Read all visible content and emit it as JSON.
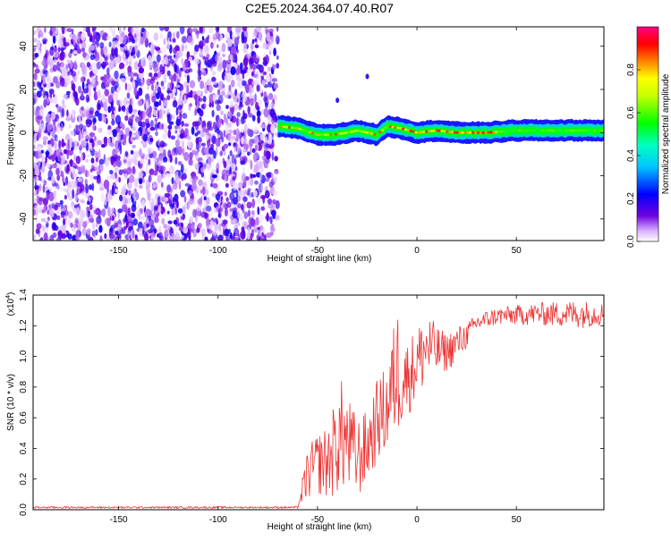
{
  "page_title": "C2E5.2024.364.07.40.R07",
  "chart_data": [
    {
      "type": "heatmap",
      "title": "C2E5.2024.364.07.40.R07",
      "xlabel": "Height of straight line (km)",
      "ylabel": "Frequency (Hz)",
      "xlim": [
        -193,
        94
      ],
      "ylim": [
        -50,
        49
      ],
      "x_ticks": [
        -150,
        -100,
        -50,
        0,
        50
      ],
      "y_ticks": [
        -40,
        -20,
        0,
        20,
        40
      ],
      "x_tick_labels": [
        "-150",
        "-100",
        "-50",
        "0",
        "50"
      ],
      "y_tick_labels": [
        "-40",
        "-20",
        "0",
        "20",
        "40"
      ],
      "colorbar": {
        "label": "Normalized spectral amplitude",
        "range": [
          0.0,
          1.0
        ],
        "ticks": [
          0.0,
          0.2,
          0.4,
          0.6,
          0.8
        ],
        "tick_labels": [
          "0.0",
          "0.2",
          "0.4",
          "0.6",
          "0.8"
        ],
        "colors": [
          "#ffffff",
          "#7000e0",
          "#0000ff",
          "#00ffff",
          "#00ff00",
          "#ffff00",
          "#ff8000",
          "#ff0000",
          "#ff0080"
        ]
      },
      "regions": [
        {
          "name": "noise",
          "x_range": [
            -193,
            -70
          ],
          "freq_range": [
            -50,
            49
          ],
          "amplitude": [
            0.0,
            0.25
          ]
        },
        {
          "name": "signal-line",
          "x_range": [
            -70,
            94
          ],
          "center_freq": 0,
          "amplitude": [
            0.3,
            0.95
          ]
        },
        {
          "name": "blip",
          "x": -40,
          "freq": 15
        },
        {
          "name": "blip",
          "x": -25,
          "freq": 26
        }
      ],
      "signal_ridge_points": [
        {
          "x": -70,
          "f": 3
        },
        {
          "x": -60,
          "f": 2
        },
        {
          "x": -50,
          "f": -1
        },
        {
          "x": -42,
          "f": -1
        },
        {
          "x": -35,
          "f": 0
        },
        {
          "x": -30,
          "f": 1
        },
        {
          "x": -20,
          "f": -1
        },
        {
          "x": -15,
          "f": 3
        },
        {
          "x": -8,
          "f": 2
        },
        {
          "x": 0,
          "f": 0
        },
        {
          "x": 10,
          "f": 1
        },
        {
          "x": 20,
          "f": 0
        },
        {
          "x": 35,
          "f": 0
        },
        {
          "x": 50,
          "f": 1
        },
        {
          "x": 70,
          "f": 1
        },
        {
          "x": 94,
          "f": 1
        }
      ]
    },
    {
      "type": "line",
      "xlabel": "Height of straight line (km)",
      "ylabel": "SNR (10 * v/v)",
      "y_scale_note": "(x10",
      "y_scale_exp": "4",
      "y_scale_suffix": ")",
      "xlim": [
        -193,
        94
      ],
      "ylim": [
        0,
        1.4
      ],
      "x_ticks": [
        -150,
        -100,
        -50,
        0,
        50
      ],
      "y_ticks": [
        0.0,
        0.2,
        0.4,
        0.6,
        0.8,
        1.0,
        1.2,
        1.4
      ],
      "x_tick_labels": [
        "-150",
        "-100",
        "-50",
        "0",
        "50"
      ],
      "y_tick_labels": [
        "0.0",
        "0.2",
        "0.4",
        "0.6",
        "0.8",
        "1.0",
        "1.2",
        "1.4"
      ],
      "series": [
        {
          "color": "#ee3333",
          "envelope": [
            {
              "x": -193,
              "low": 0.0,
              "high": 0.03
            },
            {
              "x": -60,
              "low": 0.0,
              "high": 0.03
            },
            {
              "x": -55,
              "low": 0.05,
              "high": 0.4
            },
            {
              "x": -50,
              "low": 0.1,
              "high": 0.5
            },
            {
              "x": -45,
              "low": 0.05,
              "high": 0.55
            },
            {
              "x": -38,
              "low": 0.1,
              "high": 0.85
            },
            {
              "x": -30,
              "low": 0.05,
              "high": 0.6
            },
            {
              "x": -25,
              "low": 0.15,
              "high": 0.65
            },
            {
              "x": -20,
              "low": 0.3,
              "high": 0.85
            },
            {
              "x": -15,
              "low": 0.35,
              "high": 0.95
            },
            {
              "x": -10,
              "low": 0.45,
              "high": 1.35
            },
            {
              "x": -5,
              "low": 0.6,
              "high": 1.1
            },
            {
              "x": 0,
              "low": 0.7,
              "high": 1.2
            },
            {
              "x": 5,
              "low": 0.8,
              "high": 1.3
            },
            {
              "x": 10,
              "low": 0.85,
              "high": 1.2
            },
            {
              "x": 15,
              "low": 0.9,
              "high": 1.15
            },
            {
              "x": 20,
              "low": 0.95,
              "high": 1.2
            },
            {
              "x": 25,
              "low": 1.05,
              "high": 1.22
            },
            {
              "x": 30,
              "low": 1.15,
              "high": 1.28
            },
            {
              "x": 40,
              "low": 1.2,
              "high": 1.32
            },
            {
              "x": 60,
              "low": 1.2,
              "high": 1.35
            },
            {
              "x": 80,
              "low": 1.18,
              "high": 1.37
            },
            {
              "x": 94,
              "low": 1.2,
              "high": 1.35
            }
          ]
        }
      ]
    }
  ]
}
